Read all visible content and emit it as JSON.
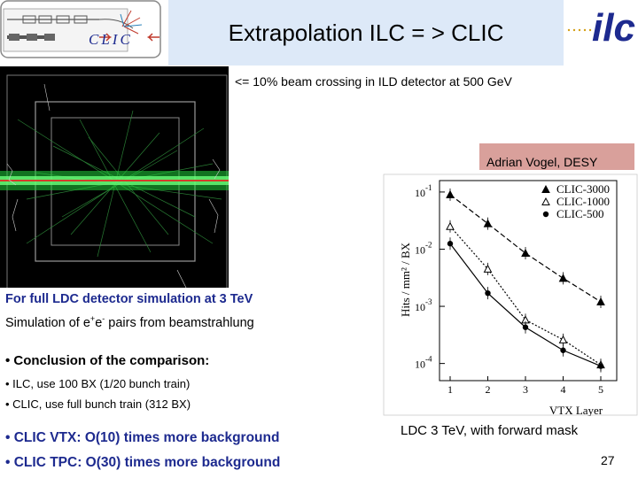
{
  "header": {
    "title": "Extrapolation ILC = > CLIC",
    "clic_logo_text": "CLIC",
    "ilc_logo_text": "ilc",
    "colors": {
      "title_band": "#dde9f8",
      "clic_logo": "#1d2a8f",
      "ilc_logo": "#1d2a8f"
    }
  },
  "event_display": {
    "caption": "<= 10% beam crossing in ILD detector at 500 GeV"
  },
  "author": {
    "label": "Adrian Vogel, DESY",
    "color": "#d9a09b"
  },
  "text_block": {
    "sim_heading": "For full LDC detector simulation at 3 TeV",
    "sim_desc_prefix": "Simulation of e",
    "sim_desc_sup1": "+",
    "sim_desc_mid": "e",
    "sim_desc_sup2": "-",
    "sim_desc_suffix": " pairs from beamstrahlung",
    "conclusion": "• Conclusion of the comparison:",
    "ilc_item": "• ILC, use 100 BX (1/20 bunch train)",
    "clic_item": "• CLIC, use full bunch train (312 BX)",
    "vtx": "• CLIC VTX: O(10) times more background",
    "tpc": "• CLIC TPC: O(30) times more background",
    "heading_color": "#1d2a8f"
  },
  "plot_caption": "LDC 3 TeV, with forward mask",
  "page_number": "27",
  "chart_data": {
    "type": "line",
    "x": [
      1,
      2,
      3,
      4,
      5
    ],
    "xlabel": "VTX Layer",
    "ylabel": "Hits / mm² / BX",
    "ylog": true,
    "ylim_exponents": [
      -4.3,
      -0.8
    ],
    "y_tick_labels": [
      "10-1",
      "10-2",
      "10-3",
      "10-4"
    ],
    "series": [
      {
        "name": "CLIC-3000",
        "marker": "filled-triangle",
        "dash": "6,3",
        "values": [
          0.09,
          0.028,
          0.0085,
          0.0031,
          0.0012
        ]
      },
      {
        "name": "CLIC-1000",
        "marker": "open-triangle",
        "dash": "2,2",
        "values": [
          0.025,
          0.0045,
          0.00058,
          0.00026,
          9.5e-05
        ]
      },
      {
        "name": "CLIC-500",
        "marker": "filled-circle",
        "dash": "",
        "values": [
          0.0125,
          0.0017,
          0.00043,
          0.00017,
          9e-05
        ]
      }
    ]
  }
}
